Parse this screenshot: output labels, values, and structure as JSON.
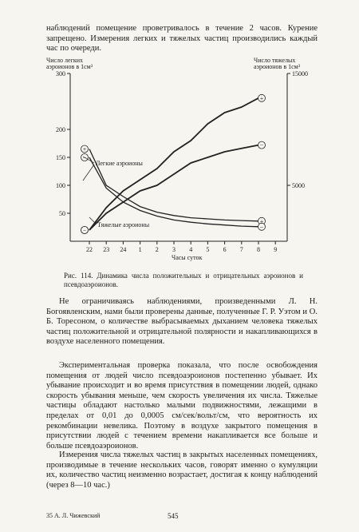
{
  "page": {
    "top_text": "наблюдений помещение проветривалось в течение 2 часов. Курение запрещено. Измерения легких и тяжелых частиц производились каждый час по очереди.",
    "caption": "Рис. 114. Динамика числа положительных и отрицательных аэроионов и псевдоаэроионов.",
    "paragraphs": [
      "Не ограничиваясь наблюдениями, произведенными Л. Н. Богоявленским, нами были проверены данные, полученные Г. Р. Уэтом и О. Б. Торесоном, о количестве выбрасываемых дыханием человека тяжелых частиц положительной и отрицательной полярности и накапливающихся в воздухе населенного помещения.",
      "Экспериментальная проверка показала, что после освобождения помещения от людей число псевдоаэроионов постепенно убывает. Их убывание происходит и во время присутствия в помещении людей, однако скорость убывания меньше, чем скорость увеличения их числа. Тяжелые частицы обладают настолько малыми подвижностями, лежащими в пределах от 0,01 до 0,0005 см/сек/вольт/см, что вероятность их рекомбинации невелика. Поэтому в воздухе закрытого помещения в присутствии людей с течением времени накапливается все больше и больше псевдоаэроионов.",
      "Измерения числа тяжелых частиц в закрытых населенных помещениях, производимые в течение нескольких часов, говорят именно о кумуляции их, количество частиц неизменно возрастает, достигая к концу наблюдений (через 8—10 час.)"
    ],
    "footer_left": "35 А. Л. Чижевский",
    "footer_right": "545"
  },
  "chart_data": {
    "type": "line",
    "ylabel": [
      "Число легких",
      "аэроионов в 1см³"
    ],
    "y2label": [
      "Число тяжелых",
      "аэроионов в 1см³"
    ],
    "xlabel": "Часы суток",
    "light_label": "Легкие аэроионы",
    "heavy_label": "Тяжелые аэроионы",
    "categories": [
      "22",
      "23",
      "24",
      "1",
      "2",
      "3",
      "4",
      "5",
      "6",
      "7",
      "8",
      "9"
    ],
    "ylim": [
      0,
      300
    ],
    "yticks": [
      50,
      100,
      150,
      200,
      300
    ],
    "y2lim": [
      0,
      15000
    ],
    "y2ticks": [
      5000,
      15000
    ],
    "color": "#222222",
    "series": [
      {
        "name": "+",
        "values": [
          165,
          100,
          80,
          62,
          52,
          46,
          42,
          40,
          38,
          37,
          36,
          null
        ]
      },
      {
        "name": "−",
        "values": [
          150,
          95,
          70,
          55,
          45,
          38,
          34,
          31,
          29,
          27,
          26,
          null
        ]
      },
      {
        "name": "+",
        "axis": "y2",
        "values": [
          1000,
          3000,
          4500,
          5500,
          6500,
          8000,
          9000,
          10500,
          11500,
          12000,
          12800,
          null
        ]
      },
      {
        "name": "−",
        "axis": "y2",
        "values": [
          1000,
          2500,
          3500,
          4500,
          5000,
          6000,
          7000,
          7500,
          8000,
          8300,
          8600,
          null
        ]
      }
    ]
  }
}
